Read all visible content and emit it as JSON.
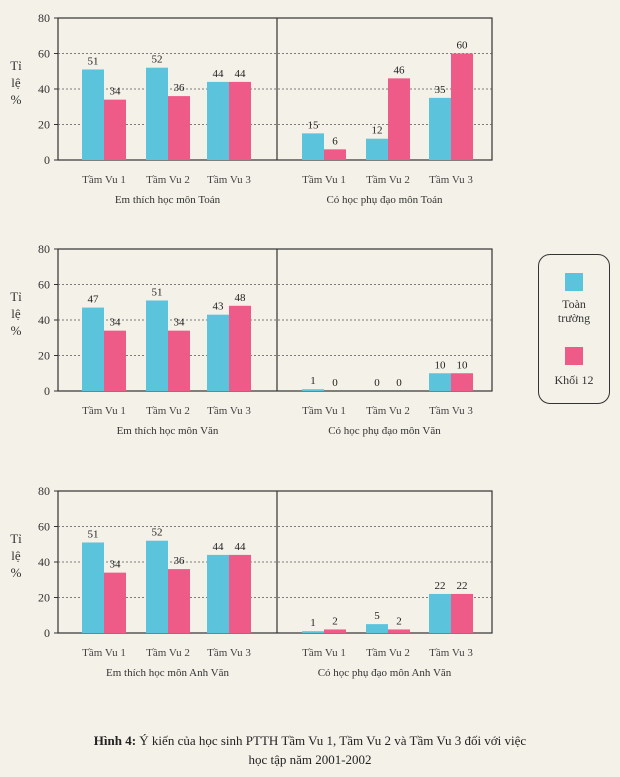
{
  "colors": {
    "toan_truong": "#5bc4dc",
    "khoi_12": "#ee5b88",
    "grid": "#555555",
    "axis": "#333333"
  },
  "legend": {
    "toan_truong": "Toàn trường",
    "khoi_12": "Khối 12"
  },
  "caption": {
    "label": "Hình 4:",
    "line1": "Ý kiến của học sinh PTTH Tầm Vu 1, Tầm Vu 2 và Tầm Vu 3 đối với việc",
    "line2": "học tập năm 2001-2002"
  },
  "chart_data": [
    {
      "type": "bar",
      "row": 0,
      "ylabel": "Tỉ lệ %",
      "ylim": [
        0,
        80
      ],
      "yticks": [
        "0",
        "20",
        "40",
        "60",
        "80"
      ],
      "panels": [
        {
          "title": "Em thích học môn Toán",
          "categories": [
            "Tầm Vu 1",
            "Tầm Vu 2",
            "Tầm Vu 3"
          ],
          "series": [
            {
              "name": "Toàn trường",
              "values": [
                51,
                52,
                44
              ]
            },
            {
              "name": "Khối 12",
              "values": [
                34,
                36,
                44
              ]
            }
          ]
        },
        {
          "title": "Có học phụ đạo môn Toán",
          "categories": [
            "Tầm Vu 1",
            "Tầm Vu 2",
            "Tầm Vu 3"
          ],
          "series": [
            {
              "name": "Toàn trường",
              "values": [
                15,
                12,
                35
              ]
            },
            {
              "name": "Khối 12",
              "values": [
                6,
                46,
                60
              ]
            }
          ]
        }
      ]
    },
    {
      "type": "bar",
      "row": 1,
      "ylabel": "Tỉ lệ %",
      "ylim": [
        0,
        80
      ],
      "yticks": [
        "0",
        "20",
        "40",
        "60",
        "80"
      ],
      "panels": [
        {
          "title": "Em thích học môn Văn",
          "categories": [
            "Tầm Vu 1",
            "Tầm Vu 2",
            "Tầm Vu 3"
          ],
          "series": [
            {
              "name": "Toàn trường",
              "values": [
                47,
                51,
                43
              ]
            },
            {
              "name": "Khối 12",
              "values": [
                34,
                34,
                48
              ]
            }
          ]
        },
        {
          "title": "Có học phụ đạo môn Văn",
          "categories": [
            "Tầm Vu 1",
            "Tầm Vu 2",
            "Tầm Vu 3"
          ],
          "series": [
            {
              "name": "Toàn trường",
              "values": [
                1,
                0,
                10
              ]
            },
            {
              "name": "Khối 12",
              "values": [
                0,
                0,
                10
              ]
            }
          ]
        }
      ]
    },
    {
      "type": "bar",
      "row": 2,
      "ylabel": "Tỉ lệ %",
      "ylim": [
        0,
        80
      ],
      "yticks": [
        "0",
        "20",
        "40",
        "60",
        "80"
      ],
      "panels": [
        {
          "title": "Em thích học môn Anh Văn",
          "categories": [
            "Tầm Vu 1",
            "Tầm Vu 2",
            "Tầm Vu 3"
          ],
          "series": [
            {
              "name": "Toàn trường",
              "values": [
                51,
                52,
                44
              ]
            },
            {
              "name": "Khối 12",
              "values": [
                34,
                36,
                44
              ]
            }
          ]
        },
        {
          "title": "Có học phụ đạo môn Anh Văn",
          "categories": [
            "Tầm Vu 1",
            "Tầm Vu 2",
            "Tầm Vu 3"
          ],
          "series": [
            {
              "name": "Toàn trường",
              "values": [
                1,
                5,
                22
              ]
            },
            {
              "name": "Khối 12",
              "values": [
                2,
                2,
                22
              ]
            }
          ]
        }
      ]
    }
  ]
}
